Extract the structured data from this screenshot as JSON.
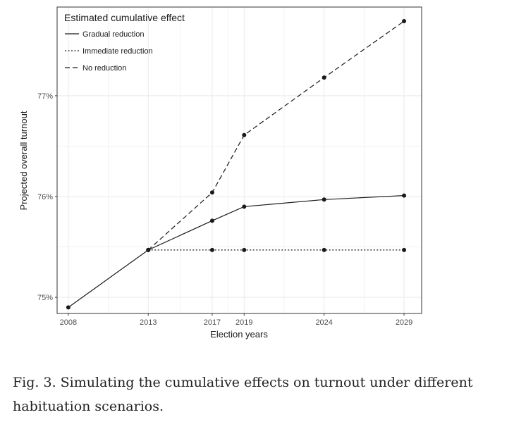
{
  "chart_data": {
    "type": "line",
    "x": [
      2008,
      2013,
      2017,
      2019,
      2024,
      2029
    ],
    "series": [
      {
        "name": "Gradual reduction",
        "style": "solid",
        "x": [
          2008,
          2013,
          2017,
          2019,
          2024,
          2029
        ],
        "values": [
          74.9,
          75.47,
          75.76,
          75.9,
          75.97,
          76.01
        ]
      },
      {
        "name": "Immediate reduction",
        "style": "dotted",
        "x": [
          2013,
          2017,
          2019,
          2024,
          2029
        ],
        "values": [
          75.47,
          75.47,
          75.47,
          75.47,
          75.47
        ]
      },
      {
        "name": "No reduction",
        "style": "dashed",
        "x": [
          2013,
          2017,
          2019,
          2024,
          2029
        ],
        "values": [
          75.47,
          76.04,
          76.61,
          77.18,
          77.74
        ]
      }
    ],
    "xticks": [
      2008,
      2013,
      2017,
      2019,
      2024,
      2029
    ],
    "xtick_labels": [
      "2008",
      "2013",
      "2017",
      "2019",
      "2024",
      "2029"
    ],
    "yticks": [
      75,
      76,
      77
    ],
    "ytick_labels": [
      "75%",
      "76%",
      "77%"
    ],
    "xlim": [
      2007.3,
      2030.1
    ],
    "ylim": [
      74.84,
      77.88
    ],
    "xlabel": "Election years",
    "ylabel": "Projected overall turnout",
    "legend_title": "Estimated cumulative effect",
    "legend_position": "top-left",
    "grid": true,
    "colors": {
      "line": "#1a1a1a",
      "grid": "#ebebeb",
      "panel_border": "#333333"
    }
  },
  "caption": "Fig. 3. Simulating the cumulative effects on turnout under different habituation scenarios."
}
